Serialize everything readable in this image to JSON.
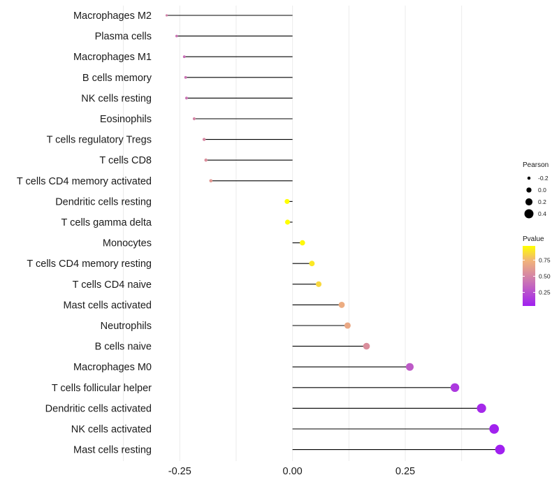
{
  "chart_data": {
    "type": "lollipop",
    "title": "",
    "xlabel": "",
    "ylabel": "",
    "xlim": [
      -0.3,
      0.47
    ],
    "xticks": [
      -0.25,
      0.0,
      0.25
    ],
    "xtick_labels": [
      "-0.25",
      "0.00",
      "0.25"
    ],
    "categories": [
      "Macrophages M2",
      "Plasma cells",
      "Macrophages M1",
      "B cells memory",
      "NK cells resting",
      "Eosinophils",
      "T cells regulatory  Tregs",
      "T cells CD8",
      "T cells CD4 memory activated",
      "Dendritic cells resting",
      "T cells gamma delta",
      "Monocytes",
      "T cells CD4 memory resting",
      "T cells CD4 naive",
      "Mast cells activated",
      "Neutrophils",
      "B cells naive",
      "Macrophages M0",
      "T cells follicular helper",
      "Dendritic cells activated",
      "NK cells activated",
      "Mast cells resting"
    ],
    "values": [
      -0.279,
      -0.257,
      -0.24,
      -0.237,
      -0.235,
      -0.218,
      -0.196,
      -0.192,
      -0.181,
      -0.012,
      -0.011,
      0.022,
      0.043,
      0.058,
      0.109,
      0.122,
      0.164,
      0.26,
      0.36,
      0.419,
      0.447,
      0.46
    ],
    "pvalues": [
      0.48,
      0.42,
      0.4,
      0.42,
      0.42,
      0.5,
      0.52,
      0.55,
      0.6,
      0.97,
      0.97,
      0.95,
      0.9,
      0.85,
      0.7,
      0.68,
      0.55,
      0.3,
      0.15,
      0.08,
      0.05,
      0.04
    ],
    "legend": {
      "size_title": "Pearson",
      "size_entries": [
        "-0.2",
        "0.0",
        "0.2",
        "0.4"
      ],
      "size_values": [
        -0.2,
        0.0,
        0.2,
        0.4
      ],
      "color_title": "Pvalue",
      "color_ticks": [
        "0.75",
        "0.50",
        "0.25"
      ],
      "color_tick_values": [
        0.75,
        0.5,
        0.25
      ],
      "color_range": [
        0.04,
        0.97
      ],
      "position": "right"
    },
    "colors": {
      "low": "#a020f0",
      "mid": "#cc77b2",
      "high_mid": "#f1b37a",
      "high": "#ffff00",
      "stem": "#000000",
      "grid": "#ebebeb",
      "legend_point": "#000000"
    }
  }
}
